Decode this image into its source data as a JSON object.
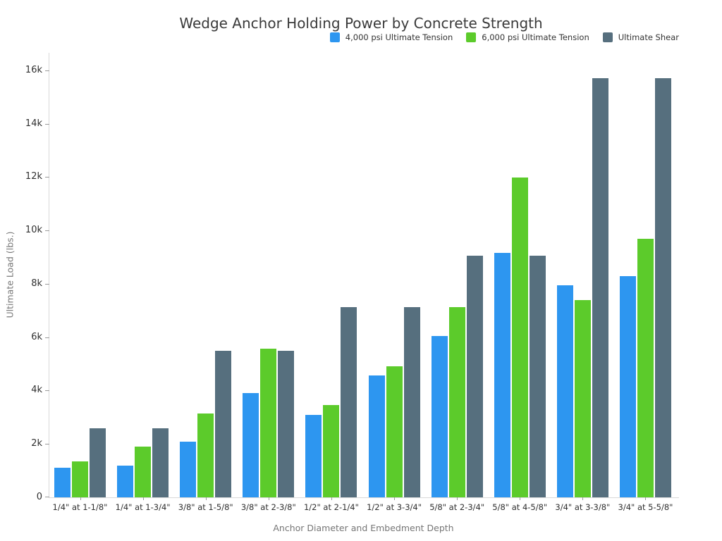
{
  "title": "Wedge Anchor Holding Power by Concrete Strength",
  "chart_data": {
    "type": "bar",
    "title": "Wedge Anchor Holding Power by Concrete Strength",
    "xlabel": "Anchor Diameter and Embedment Depth",
    "ylabel": "Ultimate Load (lbs.)",
    "ylim": [
      0,
      16660
    ],
    "grid": false,
    "legend_position": "top-right",
    "background_color": "#ffffff",
    "yticks": [
      {
        "value": 0,
        "label": "0"
      },
      {
        "value": 2000,
        "label": "2k"
      },
      {
        "value": 4000,
        "label": "4k"
      },
      {
        "value": 6000,
        "label": "6k"
      },
      {
        "value": 8000,
        "label": "8k"
      },
      {
        "value": 10000,
        "label": "10k"
      },
      {
        "value": 12000,
        "label": "12k"
      },
      {
        "value": 14000,
        "label": "14k"
      },
      {
        "value": 16000,
        "label": "16k"
      }
    ],
    "categories": [
      "1/4\" at 1-1/8\"",
      "1/4\" at 1-3/4\"",
      "3/8\" at 1-5/8\"",
      "3/8\" at 2-3/8\"",
      "1/2\" at 2-1/4\"",
      "1/2\" at 3-3/4\"",
      "5/8\" at 2-3/4\"",
      "5/8\" at 4-5/8\"",
      "3/4\" at 3-3/8\"",
      "3/4\" at 5-5/8\""
    ],
    "series": [
      {
        "name": "4,000 psi Ultimate Tension",
        "color": "#2d96f0",
        "values": [
          1100,
          1200,
          2100,
          3900,
          3080,
          4560,
          6060,
          9170,
          7960,
          8300
        ]
      },
      {
        "name": "6,000 psi Ultimate Tension",
        "color": "#5ccb2b",
        "values": [
          1350,
          1900,
          3150,
          5560,
          3470,
          4900,
          7120,
          12000,
          7400,
          9700
        ]
      },
      {
        "name": "Ultimate Shear",
        "color": "#566f7e",
        "values": [
          2600,
          2600,
          5500,
          5500,
          7120,
          7120,
          9060,
          9060,
          15710,
          15710
        ]
      }
    ]
  }
}
